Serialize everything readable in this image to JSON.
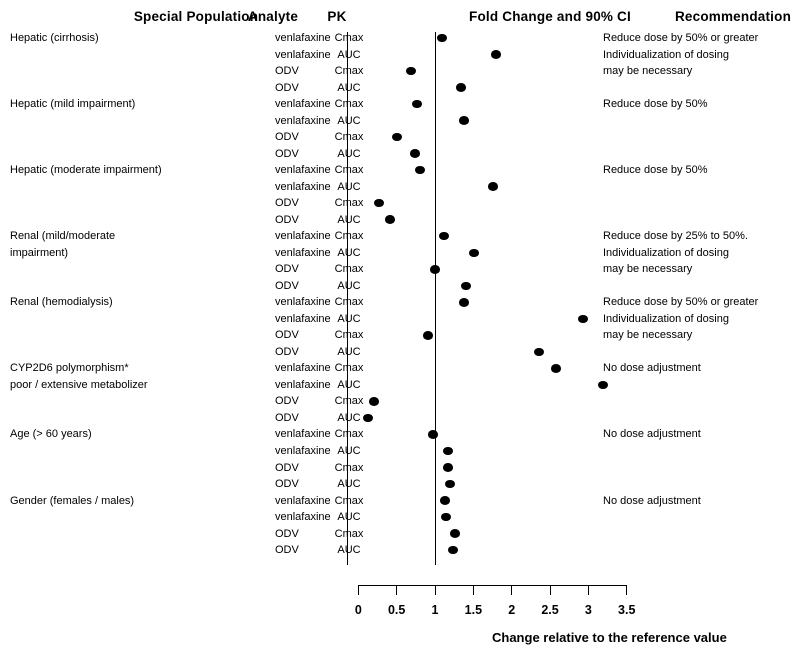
{
  "header": {
    "special_population": "Special Population",
    "analyte": "Analyte",
    "pk": "PK",
    "fold_change": "Fold Change and 90% CI",
    "recommendation": "Recommendation"
  },
  "axis": {
    "label": "Change relative to the reference value",
    "tick_labels": [
      "0",
      "0.5",
      "1",
      "1.5",
      "2",
      "2.5",
      "3",
      "3.5"
    ],
    "tick_values": [
      0,
      0.5,
      1,
      1.5,
      2,
      2.5,
      3,
      3.5
    ],
    "min": 0,
    "max": 3.5,
    "reference_value": 1
  },
  "chart_data": {
    "type": "scatter",
    "title": "Fold Change and 90% CI",
    "xlabel": "Change relative to the reference value",
    "xlim": [
      0,
      3.5
    ],
    "reference_line_x": 1,
    "marker": "filled-circle",
    "marker_color": "#000000",
    "groups": [
      {
        "population_lines": [
          "Hepatic (cirrhosis)"
        ],
        "recommendation_lines": [
          "Reduce dose by 50% or greater",
          "Individualization of dosing",
          "may be necessary"
        ],
        "rows": [
          {
            "analyte": "venlafaxine",
            "pk": "Cmax",
            "fold_change": 1.09
          },
          {
            "analyte": "venlafaxine",
            "pk": "AUC",
            "fold_change": 1.8
          },
          {
            "analyte": "ODV",
            "pk": "Cmax",
            "fold_change": 0.69
          },
          {
            "analyte": "ODV",
            "pk": "AUC",
            "fold_change": 1.34
          }
        ]
      },
      {
        "population_lines": [
          "Hepatic (mild impairment)"
        ],
        "recommendation_lines": [
          "Reduce dose by 50%"
        ],
        "rows": [
          {
            "analyte": "venlafaxine",
            "pk": "Cmax",
            "fold_change": 0.77
          },
          {
            "analyte": "venlafaxine",
            "pk": "AUC",
            "fold_change": 1.38
          },
          {
            "analyte": "ODV",
            "pk": "Cmax",
            "fold_change": 0.5
          },
          {
            "analyte": "ODV",
            "pk": "AUC",
            "fold_change": 0.74
          }
        ]
      },
      {
        "population_lines": [
          "Hepatic (moderate impairment)"
        ],
        "recommendation_lines": [
          "Reduce dose by 50%"
        ],
        "rows": [
          {
            "analyte": "venlafaxine",
            "pk": "Cmax",
            "fold_change": 0.8
          },
          {
            "analyte": "venlafaxine",
            "pk": "AUC",
            "fold_change": 1.75
          },
          {
            "analyte": "ODV",
            "pk": "Cmax",
            "fold_change": 0.27
          },
          {
            "analyte": "ODV",
            "pk": "AUC",
            "fold_change": 0.41
          }
        ]
      },
      {
        "population_lines": [
          "Renal (mild/moderate",
          "impairment)"
        ],
        "recommendation_lines": [
          "Reduce dose by 25% to 50%.",
          "Individualization of dosing",
          "may be necessary"
        ],
        "rows": [
          {
            "analyte": "venlafaxine",
            "pk": "Cmax",
            "fold_change": 1.12
          },
          {
            "analyte": "venlafaxine",
            "pk": "AUC",
            "fold_change": 1.51
          },
          {
            "analyte": "ODV",
            "pk": "Cmax",
            "fold_change": 1.0
          },
          {
            "analyte": "ODV",
            "pk": "AUC",
            "fold_change": 1.4
          }
        ]
      },
      {
        "population_lines": [
          "Renal (hemodialysis)"
        ],
        "recommendation_lines": [
          "Reduce dose by 50% or greater",
          "Individualization of dosing",
          "may be necessary"
        ],
        "rows": [
          {
            "analyte": "venlafaxine",
            "pk": "Cmax",
            "fold_change": 1.38
          },
          {
            "analyte": "venlafaxine",
            "pk": "AUC",
            "fold_change": 2.93
          },
          {
            "analyte": "ODV",
            "pk": "Cmax",
            "fold_change": 0.91
          },
          {
            "analyte": "ODV",
            "pk": "AUC",
            "fold_change": 2.36
          }
        ]
      },
      {
        "population_lines": [
          "CYP2D6 polymorphism*",
          "poor / extensive metabolizer"
        ],
        "recommendation_lines": [
          "No dose adjustment"
        ],
        "rows": [
          {
            "analyte": "venlafaxine",
            "pk": "Cmax",
            "fold_change": 2.58
          },
          {
            "analyte": "venlafaxine",
            "pk": "AUC",
            "fold_change": 3.19
          },
          {
            "analyte": "ODV",
            "pk": "Cmax",
            "fold_change": 0.2
          },
          {
            "analyte": "ODV",
            "pk": "AUC",
            "fold_change": 0.13
          }
        ]
      },
      {
        "population_lines": [
          "Age (> 60 years)"
        ],
        "recommendation_lines": [
          "No dose adjustment"
        ],
        "rows": [
          {
            "analyte": "venlafaxine",
            "pk": "Cmax",
            "fold_change": 0.98
          },
          {
            "analyte": "venlafaxine",
            "pk": "AUC",
            "fold_change": 1.17
          },
          {
            "analyte": "ODV",
            "pk": "Cmax",
            "fold_change": 1.17
          },
          {
            "analyte": "ODV",
            "pk": "AUC",
            "fold_change": 1.19
          }
        ]
      },
      {
        "population_lines": [
          "Gender (females / males)"
        ],
        "recommendation_lines": [
          "No dose adjustment"
        ],
        "rows": [
          {
            "analyte": "venlafaxine",
            "pk": "Cmax",
            "fold_change": 1.13
          },
          {
            "analyte": "venlafaxine",
            "pk": "AUC",
            "fold_change": 1.14
          },
          {
            "analyte": "ODV",
            "pk": "Cmax",
            "fold_change": 1.26
          },
          {
            "analyte": "ODV",
            "pk": "AUC",
            "fold_change": 1.23
          }
        ]
      }
    ]
  }
}
